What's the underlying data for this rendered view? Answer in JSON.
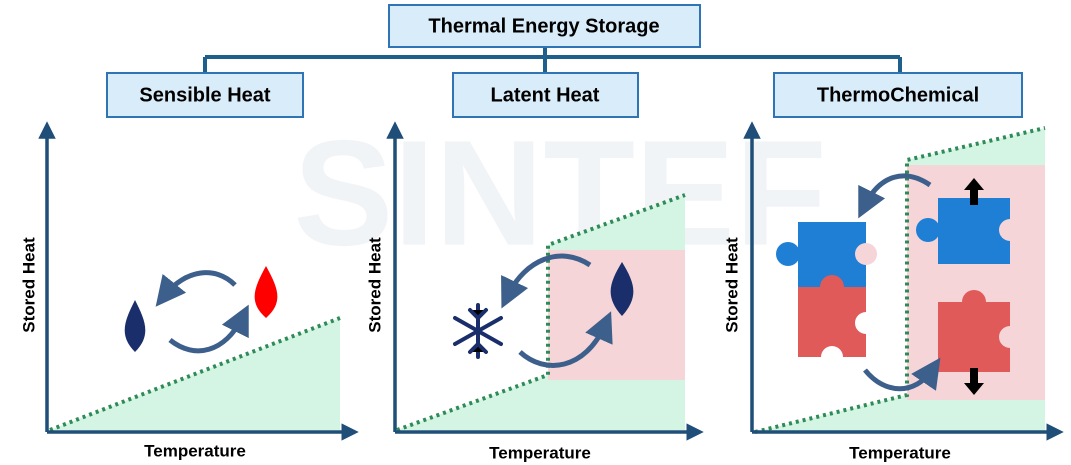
{
  "watermark": "SINTEF",
  "root": {
    "label": "Thermal Energy Storage"
  },
  "branches": [
    {
      "label": "Sensible Heat",
      "y_axis": "Stored Heat",
      "x_axis": "Temperature"
    },
    {
      "label": "Latent Heat",
      "y_axis": "Stored Heat",
      "x_axis": "Temperature"
    },
    {
      "label": "ThermoChemical",
      "y_axis": "Stored Heat",
      "x_axis": "Temperature"
    }
  ]
}
